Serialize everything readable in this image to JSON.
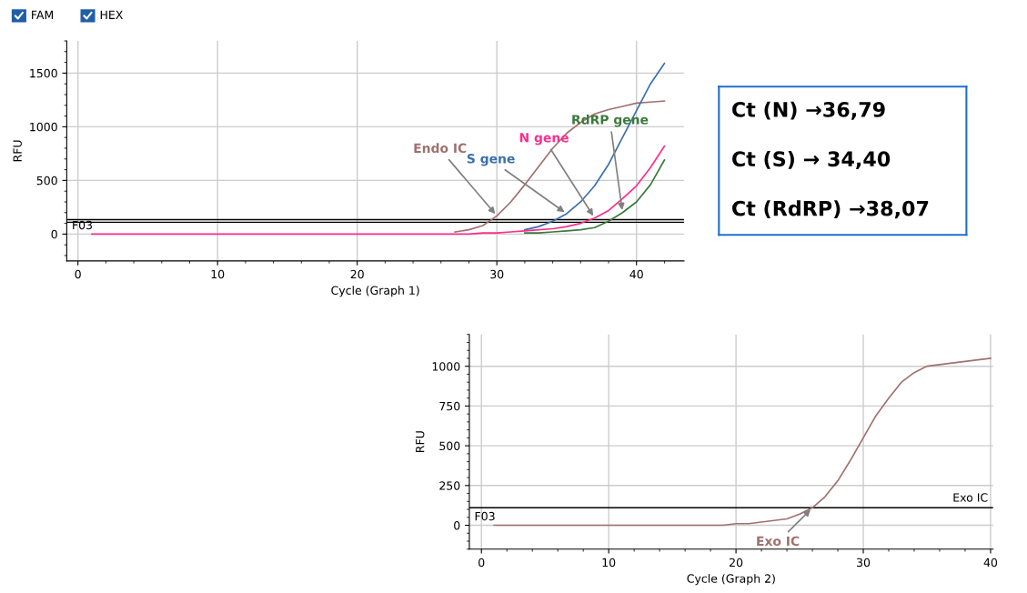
{
  "chart_data": [
    {
      "type": "other",
      "annotations": [
        "FAM",
        "HEX"
      ]
    },
    {
      "type": "line",
      "xlabel": "Cycle (Graph 1)",
      "ylabel": "RFU",
      "xlim": [
        -0.8,
        43.4
      ],
      "ylim": [
        -250,
        1800
      ],
      "xticks": [
        0,
        10,
        20,
        30,
        40
      ],
      "yticks": [
        0,
        500,
        1000,
        1500
      ],
      "grid": true,
      "marker": "none",
      "line_style": "solid",
      "x": [
        1,
        24,
        27,
        28,
        29,
        30,
        31,
        32,
        33,
        34,
        35,
        36,
        37,
        38,
        39,
        40,
        41,
        42
      ],
      "series": [
        {
          "name": "Endo IC",
          "color": "#a0706e",
          "values": [
            null,
            null,
            20,
            40,
            80,
            170,
            300,
            460,
            630,
            800,
            940,
            1040,
            1120,
            1160,
            1190,
            1220,
            1230,
            1240
          ]
        },
        {
          "name": "S gene",
          "color": "#3a6fad",
          "values": [
            null,
            null,
            null,
            null,
            null,
            null,
            null,
            40,
            70,
            120,
            190,
            300,
            450,
            650,
            900,
            1150,
            1400,
            1590
          ]
        },
        {
          "name": "RdRP gene",
          "color": "#3a7a3a",
          "values": [
            null,
            null,
            null,
            null,
            null,
            null,
            null,
            10,
            10,
            20,
            30,
            40,
            60,
            120,
            200,
            300,
            460,
            690
          ]
        },
        {
          "name": "N gene",
          "color": "#ff2d8a",
          "values": [
            0,
            0,
            0,
            0,
            10,
            10,
            20,
            30,
            40,
            50,
            70,
            100,
            150,
            220,
            330,
            450,
            620,
            820
          ]
        }
      ],
      "ref_lines": [
        {
          "axis": "y",
          "value": 135,
          "color": "#000000"
        },
        {
          "axis": "y",
          "value": 110,
          "color": "#000000"
        }
      ],
      "annotations": [
        "F03"
      ]
    },
    {
      "type": "other",
      "annotations": [
        "Ct (N) →36,79",
        "Ct (S) → 34,40",
        "Ct (RdRP) →38,07"
      ]
    },
    {
      "type": "line",
      "xlabel": "Cycle (Graph 2)",
      "ylabel": "RFU",
      "xlim": [
        -0.95,
        40.2
      ],
      "ylim": [
        -150,
        1200
      ],
      "xticks": [
        0,
        10,
        20,
        30,
        40
      ],
      "yticks": [
        0,
        250,
        500,
        750,
        1000
      ],
      "grid": true,
      "marker": "none",
      "line_style": "solid",
      "x": [
        1,
        19,
        20,
        21,
        22,
        23,
        24,
        25,
        26,
        27,
        28,
        29,
        30,
        31,
        32,
        33,
        34,
        35,
        36,
        37,
        38,
        39,
        40
      ],
      "series": [
        {
          "name": "Exo IC",
          "color": "#a0706e",
          "values": [
            0,
            0,
            10,
            10,
            20,
            30,
            40,
            70,
            110,
            180,
            280,
            410,
            550,
            690,
            800,
            900,
            960,
            1000,
            1010,
            1020,
            1030,
            1040,
            1050
          ]
        }
      ],
      "ref_lines": [
        {
          "axis": "y",
          "value": 110,
          "color": "#000000",
          "label": "Exo IC"
        }
      ],
      "annotations": [
        "F03"
      ]
    }
  ]
}
